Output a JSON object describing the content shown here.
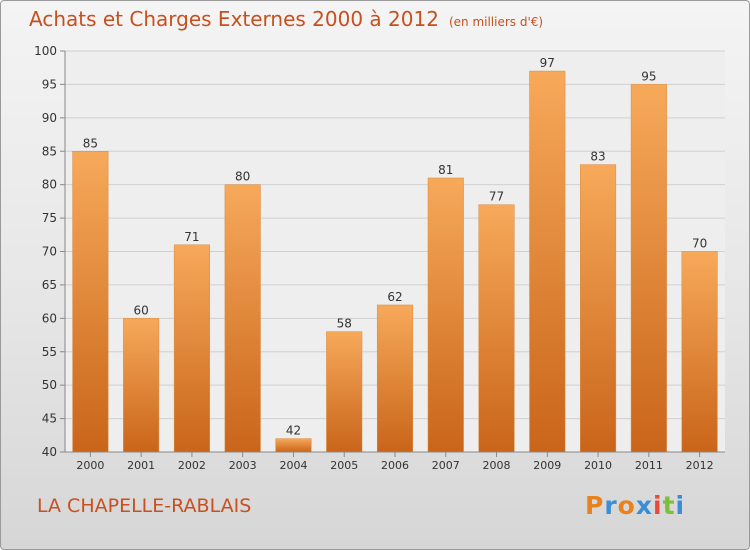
{
  "header": {
    "title": "Achats et Charges Externes 2000 à 2012",
    "unit": "(en milliers d'€)"
  },
  "footer": {
    "commune": "LA CHAPELLE-RABLAIS",
    "logo_text": "Proxiti",
    "logo_letter_colors": [
      "#e8821e",
      "#3a8ed8",
      "#e8821e",
      "#3a8ed8",
      "#e84b3a",
      "#7bbf3a",
      "#3a8ed8"
    ]
  },
  "colors": {
    "bar_top": "#f7a95a",
    "bar_bottom": "#c9651a",
    "accent": "#c8501e",
    "grid": "#d0d0d0",
    "axis_text": "#333333"
  },
  "chart_data": {
    "type": "bar",
    "categories": [
      "2000",
      "2001",
      "2002",
      "2003",
      "2004",
      "2005",
      "2006",
      "2007",
      "2008",
      "2009",
      "2010",
      "2011",
      "2012"
    ],
    "values": [
      85,
      60,
      71,
      80,
      42,
      58,
      62,
      81,
      77,
      97,
      83,
      95,
      70
    ],
    "ylim": [
      40,
      100
    ],
    "yticks": [
      40,
      45,
      50,
      55,
      60,
      65,
      70,
      75,
      80,
      85,
      90,
      95,
      100
    ],
    "xlabel": "",
    "ylabel": "",
    "grid": true
  }
}
